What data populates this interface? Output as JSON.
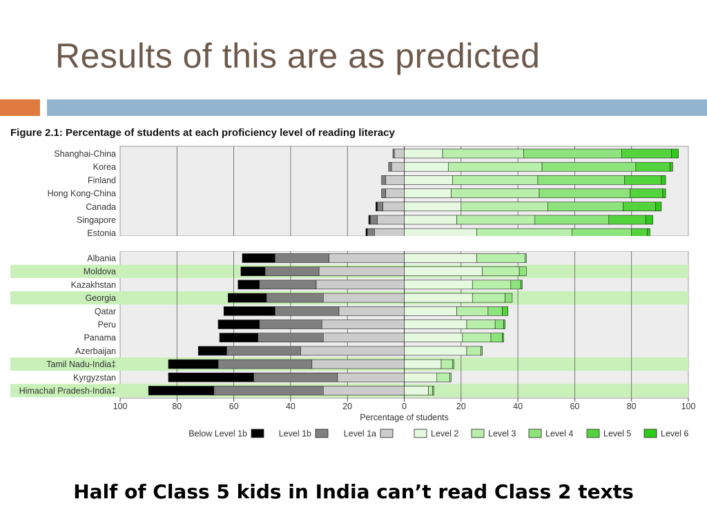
{
  "slide": {
    "title": "Results of this are as predicted",
    "caption": "Half of Class 5 kids in India can’t read Class 2 texts"
  },
  "colors": {
    "title": "#6e5a4c",
    "accent_orange": "#e07b3f",
    "accent_blue": "#93b4cf",
    "highlight_rows": "#c8f0b8",
    "levels": [
      "#000000",
      "#7f7f7f",
      "#cccccc",
      "#e6f8e0",
      "#b8efaa",
      "#8ee47c",
      "#54d43c",
      "#2fc919"
    ]
  },
  "chart_data": {
    "type": "bar",
    "orientation": "horizontal",
    "stacked": "diverging",
    "title": "Figure 2.1: Percentage of students at each proficiency level of reading literacy",
    "xlabel": "Percentage of students",
    "xlim": [
      -100,
      100
    ],
    "x_ticks": [
      "100",
      "80",
      "60",
      "40",
      "20",
      "0",
      "20",
      "40",
      "60",
      "80",
      "100"
    ],
    "levels": [
      "Below Level 1b",
      "Level 1b",
      "Level 1a",
      "Level 2",
      "Level 3",
      "Level 4",
      "Level 5",
      "Level 6"
    ],
    "levels_left": [
      "Level 1a",
      "Level 1b",
      "Below Level 1b"
    ],
    "levels_right": [
      "Level 2",
      "Level 3",
      "Level 4",
      "Level 5",
      "Level 6"
    ],
    "legend": "bottom",
    "groups": [
      {
        "rows": [
          {
            "name": "Shanghai-China",
            "highlight": false,
            "left": [
              3.5,
              0.5,
              0.0
            ],
            "right": [
              13.5,
              28.5,
              34.5,
              17.5,
              2.5
            ]
          },
          {
            "name": "Korea",
            "highlight": false,
            "left": [
              4.5,
              1.0,
              0.0
            ],
            "right": [
              15.5,
              33.0,
              33.0,
              12.0,
              1.0
            ]
          },
          {
            "name": "Finland",
            "highlight": false,
            "left": [
              6.5,
              1.5,
              0.0
            ],
            "right": [
              17.0,
              30.0,
              30.5,
              13.0,
              1.5
            ]
          },
          {
            "name": "Hong Kong-China",
            "highlight": false,
            "left": [
              6.5,
              1.5,
              0.0
            ],
            "right": [
              16.5,
              31.0,
              32.0,
              11.5,
              1.0
            ]
          },
          {
            "name": "Canada",
            "highlight": false,
            "left": [
              7.5,
              2.0,
              0.5
            ],
            "right": [
              20.0,
              30.5,
              26.5,
              11.5,
              2.0
            ]
          },
          {
            "name": "Singapore",
            "highlight": false,
            "left": [
              9.5,
              2.5,
              0.5
            ],
            "right": [
              18.5,
              27.5,
              26.0,
              13.0,
              2.5
            ]
          },
          {
            "name": "Estonia",
            "highlight": false,
            "left": [
              10.5,
              2.5,
              0.5
            ],
            "right": [
              25.5,
              33.5,
              21.0,
              5.5,
              1.0
            ]
          }
        ]
      },
      {
        "rows": [
          {
            "name": "Albania",
            "highlight": false,
            "left": [
              26.5,
              19.0,
              11.5
            ],
            "right": [
              25.5,
              17.0,
              0.5,
              0.0,
              0.0
            ]
          },
          {
            "name": "Moldova",
            "highlight": true,
            "left": [
              30.0,
              19.0,
              8.5
            ],
            "right": [
              27.5,
              13.0,
              2.5,
              0.0,
              0.0
            ]
          },
          {
            "name": "Kazakhstan",
            "highlight": false,
            "left": [
              31.0,
              20.0,
              7.5
            ],
            "right": [
              24.0,
              13.5,
              3.5,
              0.5,
              0.0
            ]
          },
          {
            "name": "Georgia",
            "highlight": true,
            "left": [
              28.5,
              20.0,
              13.5
            ],
            "right": [
              24.0,
              11.5,
              2.5,
              0.0,
              0.0
            ]
          },
          {
            "name": "Qatar",
            "highlight": false,
            "left": [
              23.0,
              22.5,
              18.0
            ],
            "right": [
              18.5,
              11.0,
              5.0,
              2.0,
              0.0
            ]
          },
          {
            "name": "Peru",
            "highlight": false,
            "left": [
              29.0,
              22.0,
              14.5
            ],
            "right": [
              22.0,
              10.0,
              3.0,
              0.5,
              0.0
            ]
          },
          {
            "name": "Panama",
            "highlight": false,
            "left": [
              28.5,
              23.0,
              13.5
            ],
            "right": [
              20.5,
              10.0,
              4.0,
              0.5,
              0.0
            ]
          },
          {
            "name": "Azerbaijan",
            "highlight": false,
            "left": [
              36.5,
              26.0,
              10.0
            ],
            "right": [
              22.0,
              5.0,
              0.5,
              0.0,
              0.0
            ]
          },
          {
            "name": "Tamil Nadu-India‡",
            "highlight": true,
            "left": [
              32.5,
              33.0,
              17.5
            ],
            "right": [
              13.0,
              4.0,
              0.5,
              0.0,
              0.0
            ]
          },
          {
            "name": "Kyrgyzstan",
            "highlight": false,
            "left": [
              23.5,
              29.5,
              30.0
            ],
            "right": [
              11.5,
              4.5,
              0.5,
              0.0,
              0.0
            ]
          },
          {
            "name": "Himachal Pradesh-India‡",
            "highlight": true,
            "left": [
              28.5,
              38.5,
              23.0
            ],
            "right": [
              8.5,
              1.5,
              0.5,
              0.0,
              0.0
            ]
          }
        ]
      }
    ]
  }
}
